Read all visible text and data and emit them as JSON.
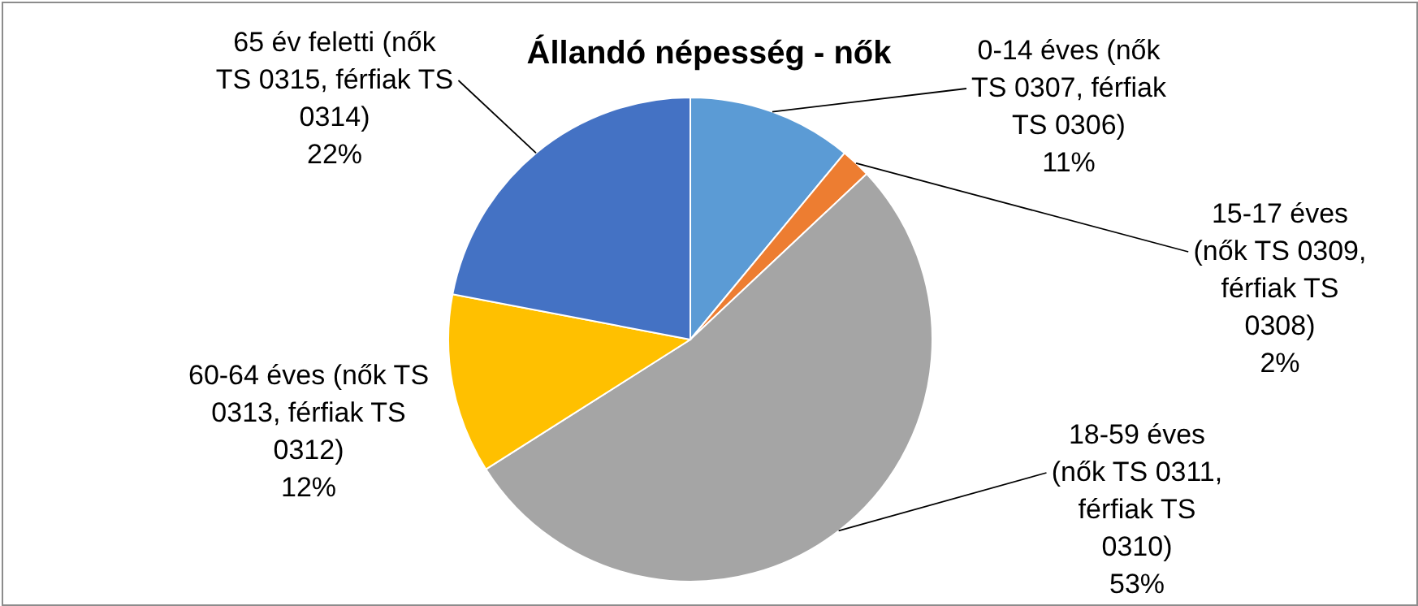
{
  "chart_data": {
    "type": "pie",
    "title": "Állandó népesség - nők",
    "categories": [
      "0-14 éves (nők TS 0307, férfiak TS 0306)",
      "15-17 éves (nők TS 0309, férfiak TS 0308)",
      "18-59 éves (nők TS 0311, férfiak TS 0310)",
      "60-64 éves (nők TS 0313, férfiak TS 0312)",
      "65 év feletti (nők TS 0315, férfiak TS 0314)"
    ],
    "values": [
      11,
      2,
      53,
      12,
      22
    ],
    "value_labels": [
      "11%",
      "2%",
      "53%",
      "12%",
      "22%"
    ],
    "colors": [
      "#5b9bd5",
      "#ed7d31",
      "#a5a5a5",
      "#ffc000",
      "#4472c4"
    ]
  }
}
